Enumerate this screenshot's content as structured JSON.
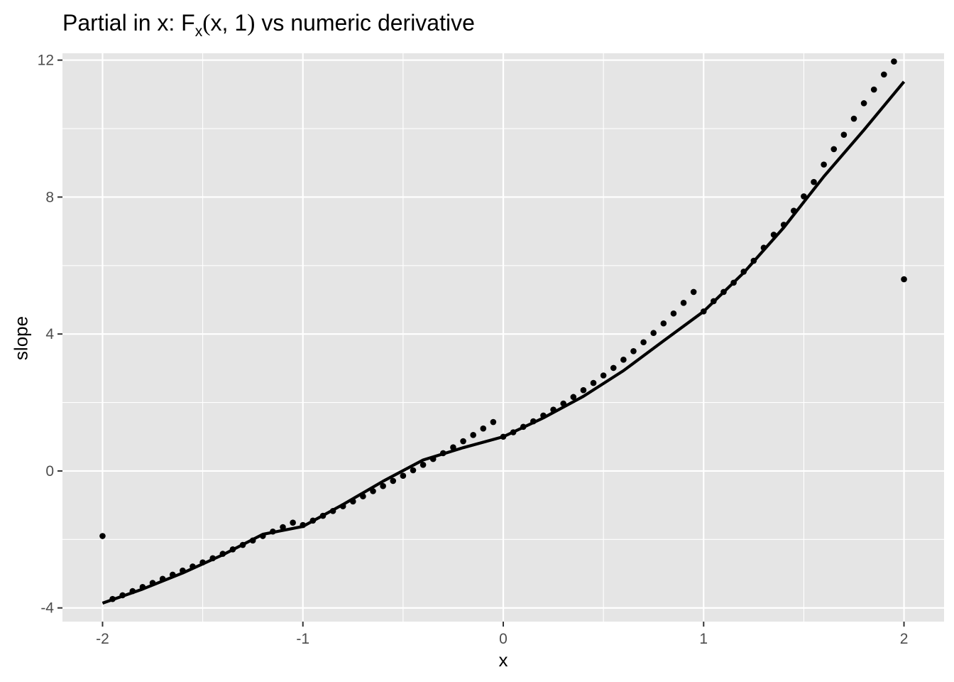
{
  "title": {
    "prefix": "Partial in x: F",
    "subscript": "x",
    "open_paren": "(",
    "args": "x, 1",
    "close_paren": ")",
    "suffix": " vs numeric derivative"
  },
  "colors": {
    "panel_background": "#e5e5e5",
    "grid": "#ffffff",
    "line": "#000000",
    "points": "#000000",
    "tick_text": "#4d4d4d"
  },
  "chart_data": {
    "type": "line",
    "title": "Partial in x: Fx(x, 1) vs numeric derivative",
    "xlabel": "x",
    "ylabel": "slope",
    "xlim": [
      -2.2,
      2.2
    ],
    "ylim": [
      -4.4,
      12.2
    ],
    "x_ticks": [
      -2,
      -1,
      0,
      1,
      2
    ],
    "x_tick_labels": [
      "-2",
      "-1",
      "0",
      "1",
      "2"
    ],
    "y_ticks": [
      -4,
      0,
      4,
      8,
      12
    ],
    "y_tick_labels": [
      "-4",
      "0",
      "4",
      "8",
      "12"
    ],
    "grid": true,
    "legend": "none",
    "series": [
      {
        "mark": "line",
        "x": [
          -2,
          -1.8,
          -1.6,
          -1.4,
          -1.2,
          -1,
          -0.8,
          -0.6,
          -0.4,
          -0.2,
          0,
          0.2,
          0.4,
          0.6,
          0.8,
          1,
          1.2,
          1.4,
          1.6,
          1.8,
          2
        ],
        "y": [
          -3.86,
          -3.45,
          -2.98,
          -2.45,
          -1.85,
          -1.62,
          -0.98,
          -0.3,
          0.32,
          0.68,
          1,
          1.55,
          2.18,
          2.93,
          3.8,
          4.66,
          5.79,
          7.11,
          8.6,
          9.96,
          11.37
        ]
      },
      {
        "mark": "points",
        "x": [
          -2,
          -1.95,
          -1.9,
          -1.85,
          -1.8,
          -1.75,
          -1.7,
          -1.65,
          -1.6,
          -1.55,
          -1.5,
          -1.45,
          -1.4,
          -1.35,
          -1.3,
          -1.25,
          -1.2,
          -1.15,
          -1.1,
          -1.05,
          -1,
          -0.95,
          -0.9,
          -0.85,
          -0.8,
          -0.75,
          -0.7,
          -0.65,
          -0.6,
          -0.55,
          -0.5,
          -0.45,
          -0.4,
          -0.35,
          -0.3,
          -0.25,
          -0.2,
          -0.15,
          -0.1,
          -0.05,
          0,
          0.05,
          0.1,
          0.15,
          0.2,
          0.25,
          0.3,
          0.35,
          0.4,
          0.45,
          0.5,
          0.55,
          0.6,
          0.65,
          0.7,
          0.75,
          0.8,
          0.85,
          0.9,
          0.95,
          1,
          1.05,
          1.1,
          1.15,
          1.2,
          1.25,
          1.3,
          1.35,
          1.4,
          1.45,
          1.5,
          1.55,
          1.6,
          1.65,
          1.7,
          1.75,
          1.8,
          1.85,
          1.9,
          1.95,
          2
        ],
        "y": [
          -1.9,
          -3.74,
          -3.63,
          -3.51,
          -3.39,
          -3.27,
          -3.15,
          -3.03,
          -2.91,
          -2.79,
          -2.67,
          -2.55,
          -2.42,
          -2.29,
          -2.16,
          -2.03,
          -1.9,
          -1.77,
          -1.64,
          -1.51,
          -1.58,
          -1.45,
          -1.31,
          -1.17,
          -1.03,
          -0.89,
          -0.74,
          -0.59,
          -0.44,
          -0.29,
          -0.14,
          0.02,
          0.18,
          0.35,
          0.52,
          0.69,
          0.87,
          1.05,
          1.24,
          1.43,
          1,
          1.13,
          1.29,
          1.45,
          1.62,
          1.79,
          1.97,
          2.16,
          2.36,
          2.57,
          2.79,
          3.01,
          3.25,
          3.5,
          3.76,
          4.03,
          4.31,
          4.6,
          4.91,
          5.23,
          4.66,
          4.96,
          5.23,
          5.5,
          5.82,
          6.14,
          6.52,
          6.9,
          7.19,
          7.6,
          8.02,
          8.44,
          8.95,
          9.4,
          9.82,
          10.29,
          10.74,
          11.14,
          11.58,
          11.96,
          5.6
        ]
      }
    ]
  }
}
